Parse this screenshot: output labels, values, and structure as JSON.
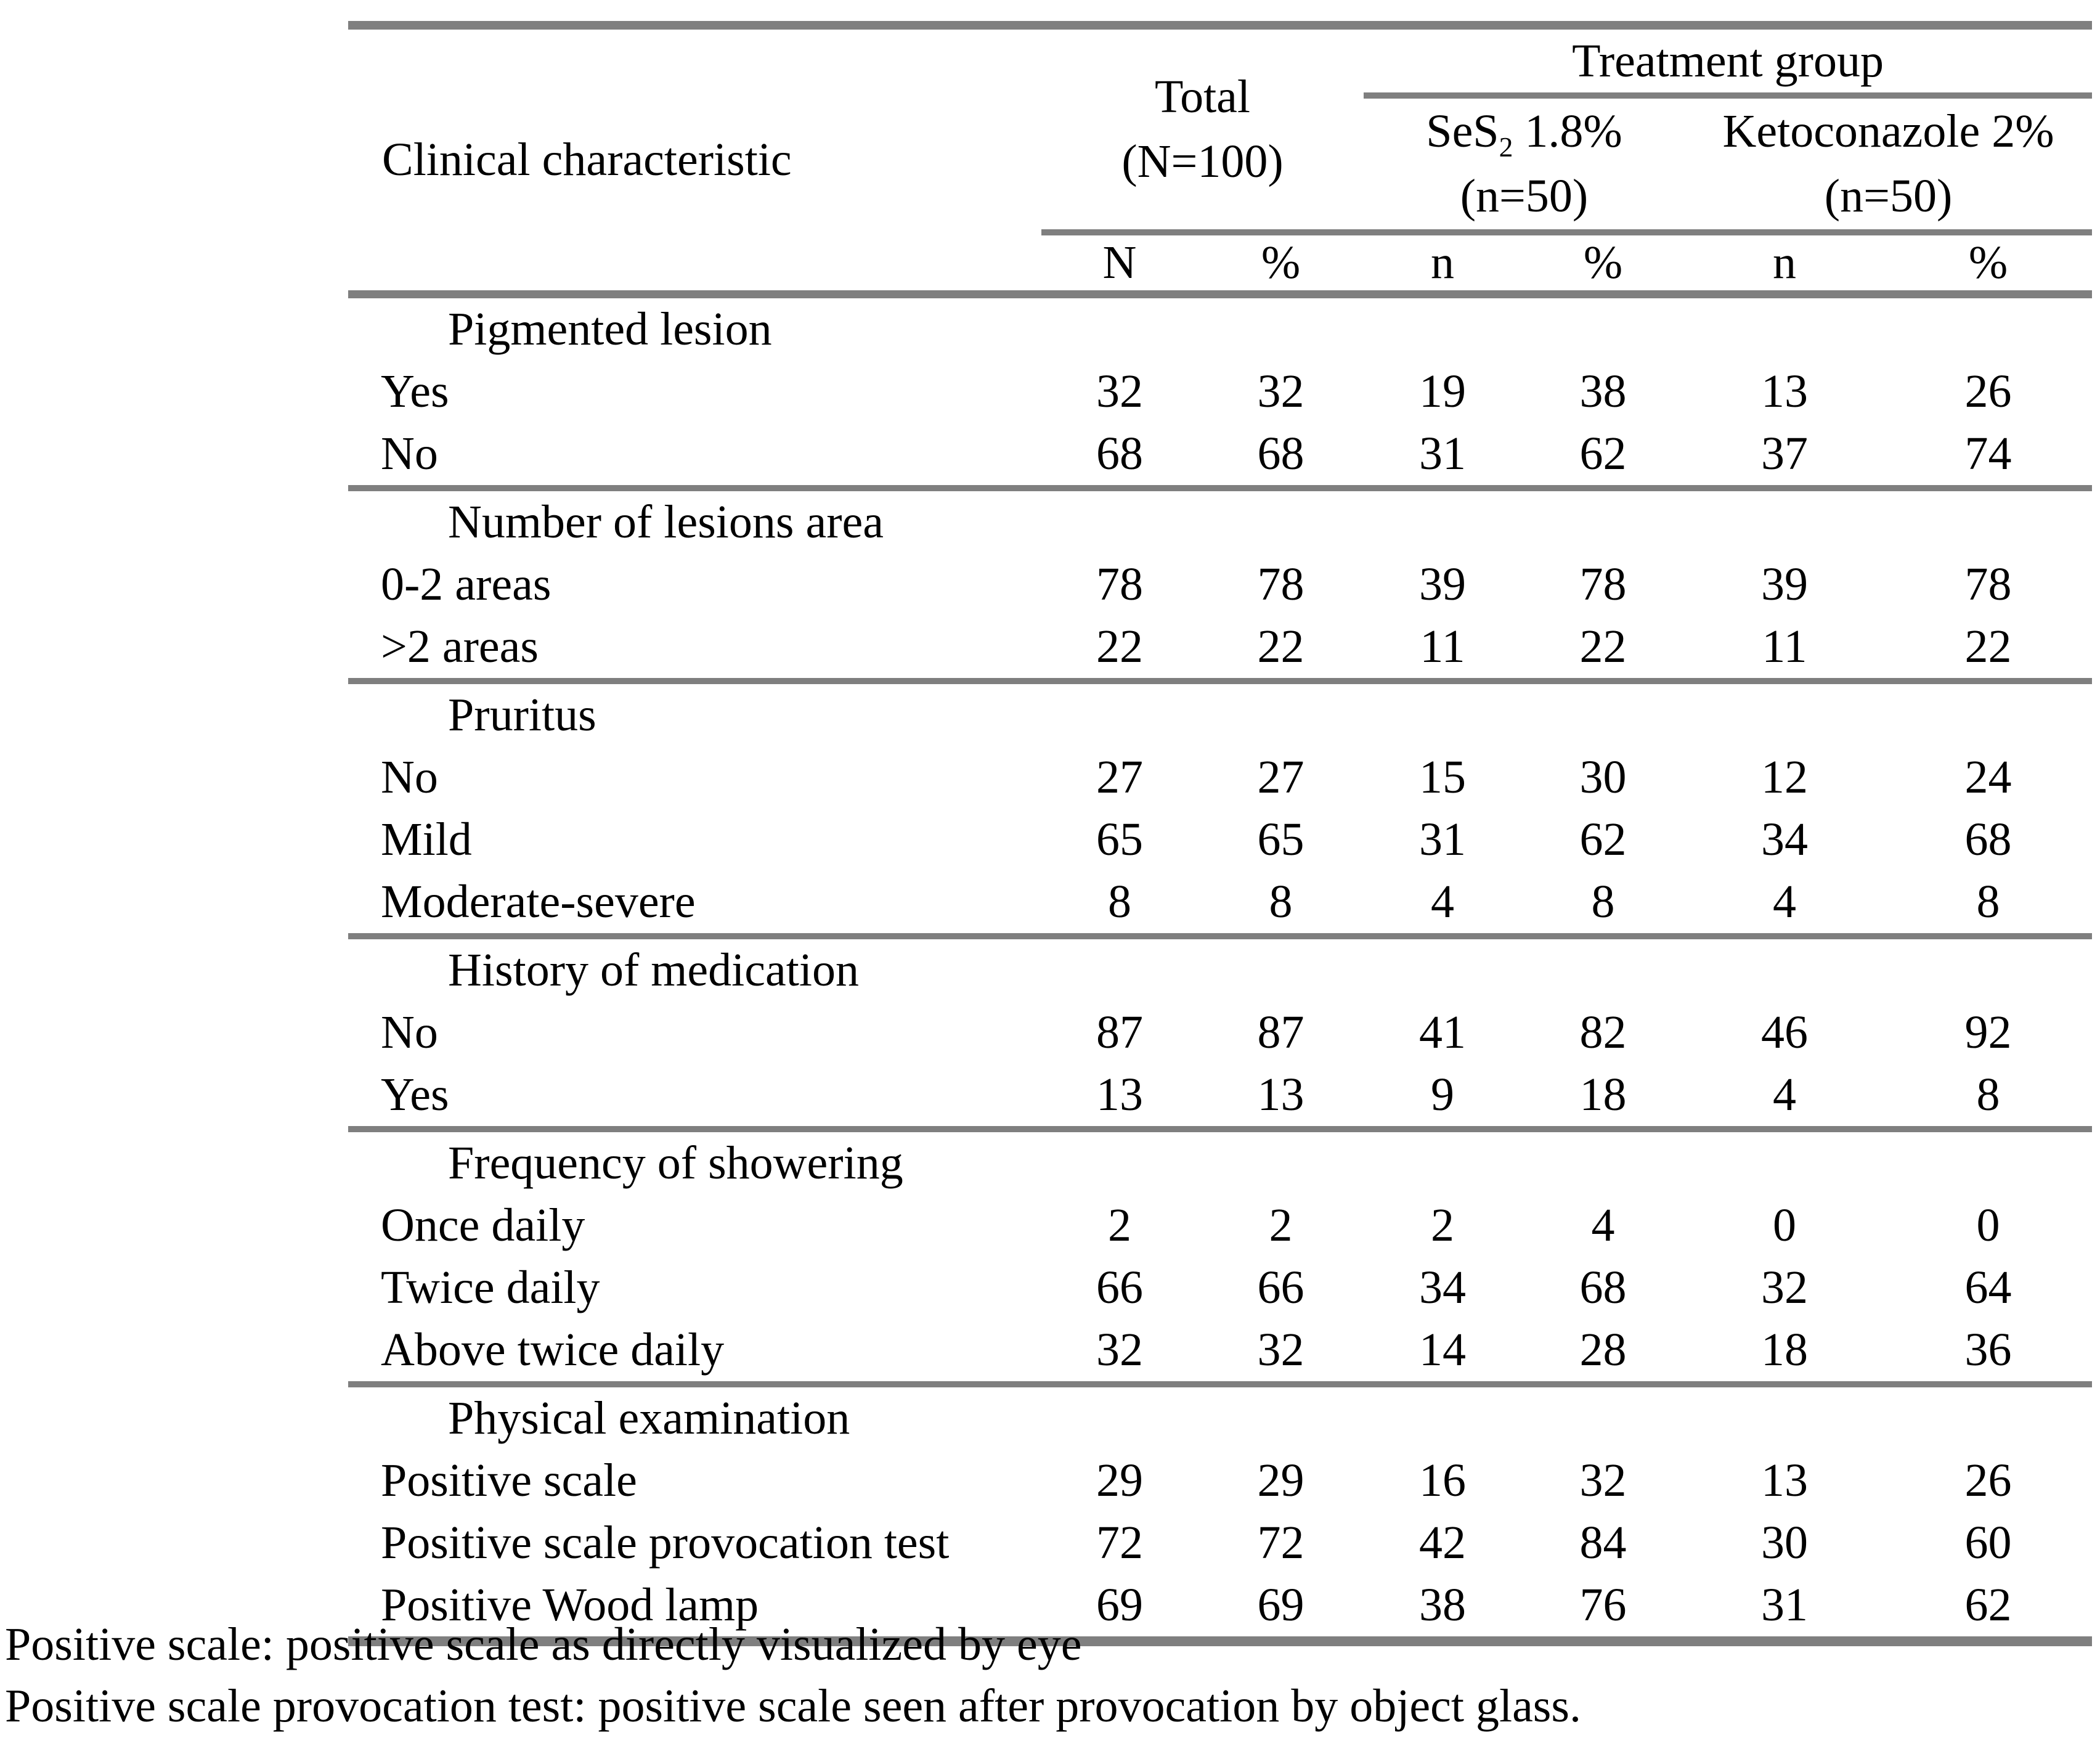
{
  "table": {
    "header": {
      "col1": "Clinical characteristic",
      "total_line1": "Total",
      "total_line2": "(N=100)",
      "treatment_group": "Treatment group",
      "ses2": {
        "line1_prefix": "SeS",
        "line1_sub": "2",
        "line1_rest": " 1.8%",
        "line2": "(n=50)"
      },
      "keto": {
        "line1": "Ketoconazole 2%",
        "line2": "(n=50)"
      },
      "subcols": [
        "N",
        "%",
        "n",
        "%",
        "n",
        "%"
      ]
    },
    "sections": [
      {
        "title": "Pigmented lesion",
        "rows": [
          {
            "label": "Yes",
            "values": [
              "32",
              "32",
              "19",
              "38",
              "13",
              "26"
            ]
          },
          {
            "label": "No",
            "values": [
              "68",
              "68",
              "31",
              "62",
              "37",
              "74"
            ]
          }
        ]
      },
      {
        "title": "Number of lesions area",
        "rows": [
          {
            "label": "0-2 areas",
            "values": [
              "78",
              "78",
              "39",
              "78",
              "39",
              "78"
            ]
          },
          {
            "label": ">2 areas",
            "values": [
              "22",
              "22",
              "11",
              "22",
              "11",
              "22"
            ]
          }
        ]
      },
      {
        "title": "Pruritus",
        "rows": [
          {
            "label": "No",
            "values": [
              "27",
              "27",
              "15",
              "30",
              "12",
              "24"
            ]
          },
          {
            "label": "Mild",
            "values": [
              "65",
              "65",
              "31",
              "62",
              "34",
              "68"
            ]
          },
          {
            "label": "Moderate-severe",
            "values": [
              "8",
              "8",
              "4",
              "8",
              "4",
              "8"
            ]
          }
        ]
      },
      {
        "title": "History of medication",
        "rows": [
          {
            "label": "No",
            "values": [
              "87",
              "87",
              "41",
              "82",
              "46",
              "92"
            ]
          },
          {
            "label": "Yes",
            "values": [
              "13",
              "13",
              "9",
              "18",
              "4",
              "8"
            ]
          }
        ]
      },
      {
        "title": "Frequency of showering",
        "rows": [
          {
            "label": "Once daily",
            "values": [
              "2",
              "2",
              "2",
              "4",
              "0",
              "0"
            ]
          },
          {
            "label": "Twice daily",
            "values": [
              "66",
              "66",
              "34",
              "68",
              "32",
              "64"
            ]
          },
          {
            "label": "Above twice daily",
            "values": [
              "32",
              "32",
              "14",
              "28",
              "18",
              "36"
            ]
          }
        ]
      },
      {
        "title": "Physical examination",
        "rows": [
          {
            "label": "Positive scale",
            "values": [
              "29",
              "29",
              "16",
              "32",
              "13",
              "26"
            ]
          },
          {
            "label": "Positive scale provocation test",
            "values": [
              "72",
              "72",
              "42",
              "84",
              "30",
              "60"
            ]
          },
          {
            "label": "Positive Wood lamp",
            "values": [
              "69",
              "69",
              "38",
              "76",
              "31",
              "62"
            ]
          }
        ]
      }
    ]
  },
  "footnotes": [
    "Positive scale: positive scale as directly visualized by eye",
    "Positive scale provocation test: positive scale seen after provocation by object glass."
  ],
  "colors": {
    "rule": "#7f7f7f",
    "text": "#000000",
    "background": "#ffffff"
  }
}
